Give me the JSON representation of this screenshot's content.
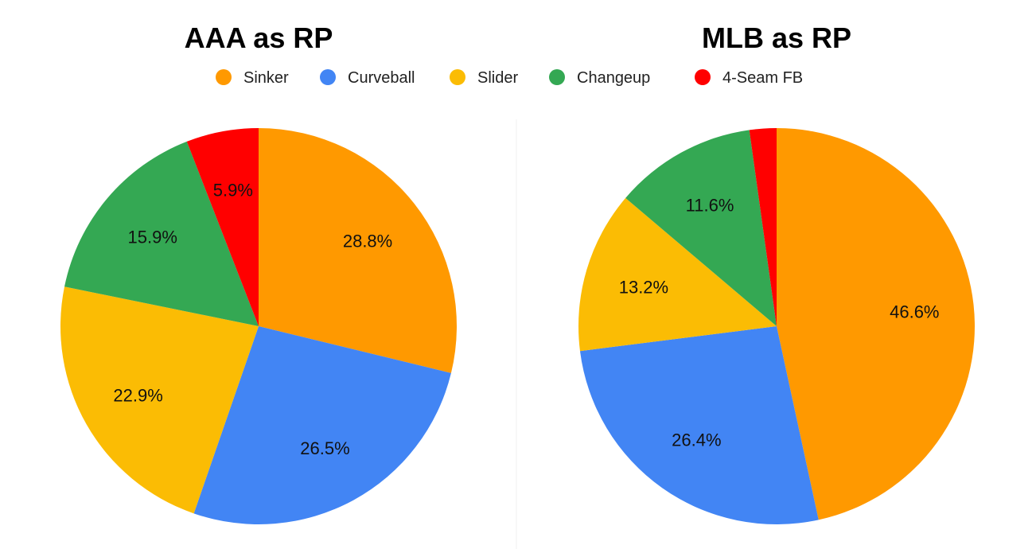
{
  "legend": [
    {
      "label": "Sinker",
      "color": "#ff9900"
    },
    {
      "label": "Curveball",
      "color": "#4285f4"
    },
    {
      "label": "Slider",
      "color": "#fbbc04"
    },
    {
      "label": "Changeup",
      "color": "#34a853"
    },
    {
      "label": "4-Seam FB",
      "color": "#ff0000"
    }
  ],
  "chart_data": [
    {
      "type": "pie",
      "title": "AAA as RP",
      "categories": [
        "Sinker",
        "Curveball",
        "Slider",
        "Changeup",
        "4-Seam FB"
      ],
      "values": [
        28.8,
        26.5,
        22.9,
        15.9,
        5.9
      ],
      "labels": [
        "28.8%",
        "26.5%",
        "22.9%",
        "15.9%",
        "5.9%"
      ],
      "legend": "top"
    },
    {
      "type": "pie",
      "title": "MLB as RP",
      "categories": [
        "Sinker",
        "Curveball",
        "Slider",
        "Changeup",
        "4-Seam FB"
      ],
      "values": [
        46.6,
        26.4,
        13.2,
        11.6,
        2.2
      ],
      "labels": [
        "46.6%",
        "26.4%",
        "13.2%",
        "11.6%",
        ""
      ],
      "legend": "top"
    }
  ]
}
